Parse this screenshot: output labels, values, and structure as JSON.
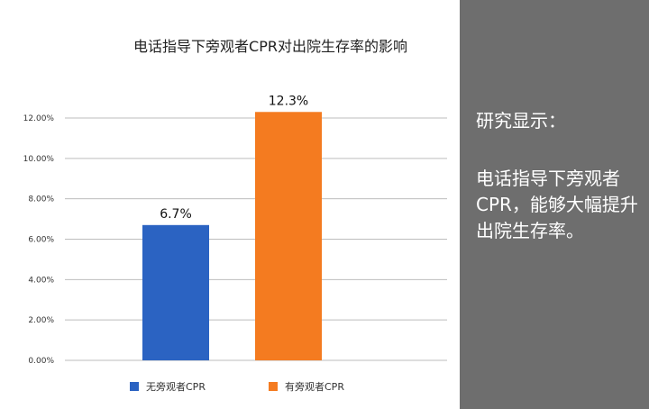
{
  "chart_data": {
    "type": "bar",
    "title": "电话指导下旁观者CPR对出院生存率的影响",
    "categories": [
      "无旁观者CPR",
      "有旁观者CPR"
    ],
    "values": [
      6.7,
      12.3
    ],
    "data_labels": [
      "6.7%",
      "12.3%"
    ],
    "colors": [
      "#2b63c2",
      "#f47b20"
    ],
    "ylim": [
      0,
      12
    ],
    "yticks": [
      0,
      2,
      4,
      6,
      8,
      10,
      12
    ],
    "ytick_labels": [
      "0.00%",
      "2.00%",
      "4.00%",
      "6.00%",
      "8.00%",
      "10.00%",
      "12.00%"
    ],
    "grid": true,
    "legend": {
      "placement": "bottom",
      "entries": [
        {
          "name": "无旁观者CPR",
          "color": "#2b63c2"
        },
        {
          "name": "有旁观者CPR",
          "color": "#f47b20"
        }
      ]
    }
  },
  "side_panel": {
    "heading": "研究显示：",
    "body": "电话指导下旁观者CPR，能够大幅提升出院生存率。",
    "background": "#6e6e6e"
  }
}
